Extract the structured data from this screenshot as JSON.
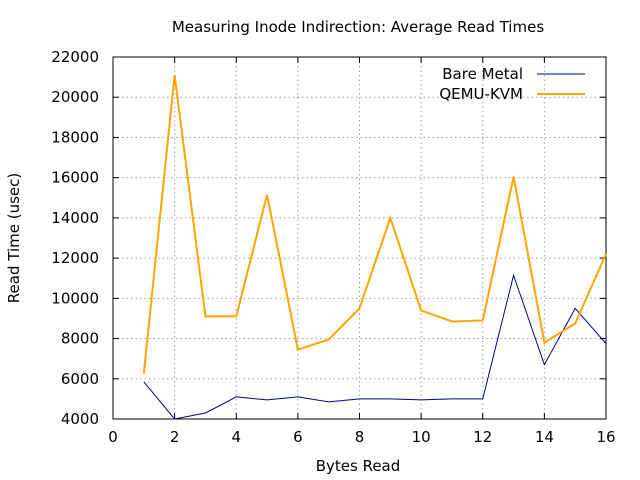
{
  "chart_data": {
    "type": "line",
    "title": "Measuring Inode Indirection: Average Read Times",
    "xlabel": "Bytes Read",
    "ylabel": "Read Time (usec)",
    "xlim": [
      0,
      16
    ],
    "ylim": [
      4000,
      22000
    ],
    "xticks": [
      0,
      2,
      4,
      6,
      8,
      10,
      12,
      14,
      16
    ],
    "yticks": [
      4000,
      6000,
      8000,
      10000,
      12000,
      14000,
      16000,
      18000,
      20000,
      22000
    ],
    "grid": true,
    "legend_position": "top-right",
    "x": [
      1,
      2,
      3,
      4,
      5,
      6,
      7,
      8,
      9,
      10,
      11,
      12,
      13,
      14,
      15,
      16
    ],
    "series": [
      {
        "name": "Bare Metal",
        "color": "#00008b",
        "line_weight": "thin",
        "values": [
          5850,
          4000,
          4300,
          5100,
          4950,
          5100,
          4850,
          5000,
          5000,
          4950,
          5000,
          5000,
          11150,
          6700,
          9500,
          7750
        ]
      },
      {
        "name": "QEMU-KVM",
        "color": "#ffa500",
        "line_weight": "thick",
        "values": [
          6250,
          21100,
          9100,
          9100,
          15150,
          7450,
          7950,
          9500,
          14000,
          9400,
          8850,
          8900,
          16050,
          7800,
          8750,
          12200
        ]
      }
    ]
  }
}
